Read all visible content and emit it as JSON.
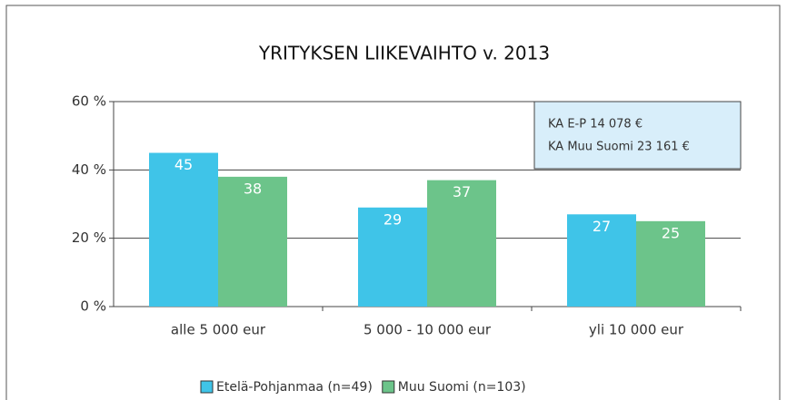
{
  "chart_data": {
    "type": "bar",
    "title": "YRITYKSEN LIIKEVAIHTO v. 2013",
    "categories": [
      "alle 5 000 eur",
      "5 000 - 10 000 eur",
      "yli 10 000 eur"
    ],
    "series": [
      {
        "name": "Etelä-Pohjanmaa (n=49)",
        "color": "#3fc4e8",
        "values": [
          45,
          29,
          27
        ]
      },
      {
        "name": "Muu Suomi (n=103)",
        "color": "#6cc48a",
        "values": [
          38,
          37,
          25
        ]
      }
    ],
    "ylim": [
      0,
      60
    ],
    "yticks": [
      {
        "value": 0,
        "label": "0 %"
      },
      {
        "value": 20,
        "label": "20 %"
      },
      {
        "value": 40,
        "label": "40 %"
      },
      {
        "value": 60,
        "label": "60 %"
      }
    ],
    "grid": true,
    "annotations": [
      "KA E-P 14 078 €",
      "KA Muu Suomi 23 161 €"
    ],
    "legend": "bottom"
  }
}
